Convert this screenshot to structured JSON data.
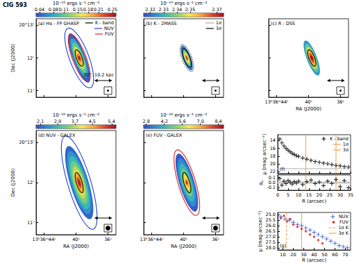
{
  "title": "CIG 593",
  "chart_data": [
    {
      "type": "image",
      "title": "(a) Hα - FP GHASP",
      "xlim": [
        45,
        35
      ],
      "xticks": [
        {
          "value": 44,
          "label": "13ʰ36ᵐ44ˢ"
        },
        {
          "value": 40,
          "label": "40ˢ"
        },
        {
          "value": 36,
          "label": "36ˢ"
        }
      ],
      "ylim": [
        10.8,
        13.2
      ],
      "yticks": [
        {
          "value": 13,
          "label": "20°13'"
        },
        {
          "value": 12,
          "label": "12'"
        },
        {
          "value": 11,
          "label": "11'"
        }
      ],
      "ylabel": "Dec (J2000)",
      "tick_labels": "y",
      "colorbar": {
        "label": "10⁻¹⁵ ergs s⁻¹ cm⁻²",
        "range": [
          0.03,
          0.26
        ],
        "ticks": [
          0.04,
          0.08,
          0.11,
          0.15,
          0.18,
          0.21,
          0.25
        ]
      },
      "center": [
        39.6,
        12.0
      ],
      "pa": 20,
      "isophotes": [
        {
          "level": 0.04,
          "a": 48,
          "b": 11
        },
        {
          "level": 0.08,
          "a": 38,
          "b": 9
        },
        {
          "level": 0.11,
          "a": 30,
          "b": 7.5
        },
        {
          "level": 0.15,
          "a": 22,
          "b": 6
        },
        {
          "level": 0.18,
          "a": 14,
          "b": 4.5
        },
        {
          "level": 0.21,
          "a": 8,
          "b": 3
        },
        {
          "level": 0.25,
          "a": 4,
          "b": 2
        }
      ],
      "contours": [
        {
          "name": "K - band",
          "color": "#000000",
          "line_style": "solid",
          "a": 16,
          "b": 5
        },
        {
          "name": "NUV",
          "color": "#1f3fd6",
          "line_style": "solid",
          "a": 58,
          "b": 17
        },
        {
          "name": "FUV",
          "color": "#e0201b",
          "line_style": "solid",
          "a": 46,
          "b": 12
        }
      ],
      "legend": "upper right",
      "scale_bar": 30,
      "scale_label": "30'': 10.2 kpc"
    },
    {
      "type": "image",
      "title": "(b) K - 2MASS",
      "xlim": [
        45,
        35
      ],
      "xticks": [
        {
          "value": 44,
          "label": "13ʰ36ᵐ44ˢ"
        },
        {
          "value": 40,
          "label": "40ˢ"
        },
        {
          "value": 36,
          "label": "36ˢ"
        }
      ],
      "ylim": [
        10.8,
        13.2
      ],
      "yticks": [
        {
          "value": 13,
          "label": "20°13'"
        },
        {
          "value": 12,
          "label": "12'"
        },
        {
          "value": 11,
          "label": "11'"
        }
      ],
      "tick_labels": false,
      "colorbar": {
        "label": "10⁻¹⁴ ergs s⁻¹ cm⁻²",
        "range": [
          2.315,
          2.375
        ],
        "ticks": [
          2.32,
          2.33,
          2.34,
          2.35,
          2.37
        ]
      },
      "center": [
        39.6,
        12.0
      ],
      "pa": 20,
      "isophotes": [
        {
          "level": 2.32,
          "a": 24,
          "b": 7
        },
        {
          "level": 2.33,
          "a": 19,
          "b": 5.5
        },
        {
          "level": 2.34,
          "a": 14,
          "b": 4
        },
        {
          "level": 2.35,
          "a": 10,
          "b": 3
        },
        {
          "level": 2.36,
          "a": 6,
          "b": 2
        },
        {
          "level": 2.37,
          "a": 3,
          "b": 1.2
        }
      ],
      "contours": [
        {
          "name": "1σ",
          "color": "#000000",
          "line_style": "dotted",
          "a": 26,
          "b": 8.5
        },
        {
          "name": "3σ",
          "color": "#000000",
          "line_style": "solid",
          "a": 18,
          "b": 5.5
        }
      ],
      "legend": "upper right",
      "scale_bar": 30
    },
    {
      "type": "image",
      "title": "(c) R - DSS",
      "xlim": [
        45,
        35
      ],
      "xticks": [
        {
          "value": 44,
          "label": "13ʰ36ᵐ44ˢ"
        },
        {
          "value": 40,
          "label": "40ˢ"
        },
        {
          "value": 36,
          "label": "36ˢ"
        }
      ],
      "ylim": [
        10.8,
        13.2
      ],
      "yticks": [
        {
          "value": 13,
          "label": "20°13'"
        },
        {
          "value": 12,
          "label": "12'"
        },
        {
          "value": 11,
          "label": "11'"
        }
      ],
      "xlabel": "RA (J2000)",
      "tick_labels": "x",
      "color_range": [
        0,
        6
      ],
      "center": [
        39.6,
        12.0
      ],
      "pa": 20,
      "isophotes": [
        {
          "level": 1,
          "a": 34,
          "b": 9
        },
        {
          "level": 2,
          "a": 28,
          "b": 7.5
        },
        {
          "level": 3,
          "a": 22,
          "b": 6
        },
        {
          "level": 4,
          "a": 16,
          "b": 4.5
        },
        {
          "level": 5,
          "a": 10,
          "b": 3
        },
        {
          "level": 6,
          "a": 5,
          "b": 2
        }
      ],
      "contours": [
        {
          "name": "K - band",
          "color": "#000000",
          "line_style": "solid",
          "a": 16,
          "b": 5
        }
      ],
      "scale_bar": 30
    },
    {
      "type": "image",
      "title": "(d) NUV - GALEX",
      "xlim": [
        45,
        35
      ],
      "xticks": [
        {
          "value": 44,
          "label": "13ʰ36ᵐ44ˢ"
        },
        {
          "value": 40,
          "label": "40ˢ"
        },
        {
          "value": 36,
          "label": "36ˢ"
        }
      ],
      "ylim": [
        10.7,
        13.3
      ],
      "yticks": [
        {
          "value": 13,
          "label": "20°13'"
        },
        {
          "value": 12,
          "label": "12'"
        },
        {
          "value": 11,
          "label": "11'"
        }
      ],
      "xlabel": "RA (J2000)",
      "ylabel": "Dec (J2000)",
      "colorbar": {
        "label": "10⁻¹⁸ ergs s⁻¹ cm⁻²",
        "range": [
          1.9,
          5.6
        ],
        "ticks": [
          2.1,
          2.9,
          3.7,
          4.5,
          5.4
        ]
      },
      "center": [
        39.6,
        12.0
      ],
      "pa": 20,
      "isophotes": [
        {
          "level": 2.1,
          "a": 58,
          "b": 16
        },
        {
          "level": 2.5,
          "a": 50,
          "b": 14
        },
        {
          "level": 2.9,
          "a": 42,
          "b": 12
        },
        {
          "level": 3.3,
          "a": 34,
          "b": 10
        },
        {
          "level": 3.7,
          "a": 26,
          "b": 8
        },
        {
          "level": 4.1,
          "a": 20,
          "b": 6
        },
        {
          "level": 4.5,
          "a": 14,
          "b": 4.5
        },
        {
          "level": 5.0,
          "a": 9,
          "b": 3
        },
        {
          "level": 5.4,
          "a": 5,
          "b": 2
        }
      ],
      "contours": [
        {
          "name": "NUV",
          "color": "#1f3fd6",
          "line_style": "solid",
          "a": 74,
          "b": 20
        },
        {
          "name": "K - band",
          "color": "#000000",
          "line_style": "solid",
          "a": 16,
          "b": 5
        }
      ],
      "scale_bar": 30
    },
    {
      "type": "image",
      "title": "(e) FUV - GALEX",
      "xlim": [
        45,
        35
      ],
      "xticks": [
        {
          "value": 44,
          "label": "13ʰ36ᵐ44ˢ"
        },
        {
          "value": 40,
          "label": "40ˢ"
        },
        {
          "value": 36,
          "label": "36ˢ"
        }
      ],
      "ylim": [
        10.7,
        13.3
      ],
      "yticks": [
        {
          "value": 13,
          "label": "20°13'"
        },
        {
          "value": 12,
          "label": "12'"
        },
        {
          "value": 11,
          "label": "11'"
        }
      ],
      "xlabel": "RA (J2000)",
      "tick_labels": "x",
      "colorbar": {
        "label": "10⁻¹⁸ ergs s⁻¹ cm⁻²",
        "range": [
          2.6,
          8.8
        ],
        "ticks": [
          2.8,
          4.2,
          5.6,
          {
            "value": 7,
            "label": "7.0"
          },
          8.4
        ]
      },
      "center": [
        39.6,
        12.0
      ],
      "pa": 20,
      "isophotes": [
        {
          "level": 2.8,
          "a": 46,
          "b": 13
        },
        {
          "level": 3.5,
          "a": 38,
          "b": 11
        },
        {
          "level": 4.2,
          "a": 30,
          "b": 9
        },
        {
          "level": 4.9,
          "a": 22,
          "b": 7
        },
        {
          "level": 5.6,
          "a": 16,
          "b": 5
        },
        {
          "level": 6.3,
          "a": 11,
          "b": 4
        },
        {
          "level": 7.0,
          "a": 7,
          "b": 3
        },
        {
          "level": 8.4,
          "a": 3,
          "b": 1.5
        }
      ],
      "contours": [
        {
          "name": "FUV",
          "color": "#e0201b",
          "line_style": "solid",
          "a": 52,
          "b": 15
        },
        {
          "name": "K - band",
          "color": "#000000",
          "line_style": "solid",
          "a": 16,
          "b": 5
        }
      ],
      "scale_bar": 30
    },
    {
      "type": "scatter",
      "title": "(f)",
      "x": [
        1,
        2,
        3,
        4,
        5,
        6,
        7,
        8,
        9,
        10,
        12,
        14,
        16,
        18,
        20,
        22,
        24,
        26,
        28,
        30,
        32,
        34
      ],
      "series": [
        {
          "name": "K - band",
          "color": "#000000",
          "marker": "plus",
          "values": [
            13.6,
            14.6,
            15.4,
            16.0,
            16.5,
            16.9,
            17.3,
            17.6,
            17.9,
            18.1,
            18.5,
            18.8,
            19.1,
            19.4,
            19.6,
            19.8,
            20.0,
            20.2,
            20.4,
            20.5,
            20.7,
            20.8
          ]
        }
      ],
      "vlines": [
        {
          "name": "1σ",
          "x": 13.5,
          "color": "#f5a142",
          "line_style": "solid"
        },
        {
          "name": "3σ",
          "x": 28,
          "color": "#f5a142",
          "line_style": "solid"
        }
      ],
      "bands": [
        [
          21.1,
          21.4
        ]
      ],
      "xlim": [
        0,
        35
      ],
      "xticks": [
        0,
        5,
        10,
        15,
        20,
        25,
        30,
        35
      ],
      "ylim": [
        22.5,
        12.5
      ],
      "yticks": [
        14,
        16,
        18,
        20,
        22
      ],
      "ylabel": "μ (mag arcsec⁻²)",
      "tick_labels": "y",
      "legend": "upper right"
    },
    {
      "type": "scatter",
      "x": [
        1,
        2,
        3,
        4,
        5,
        6,
        7,
        8,
        9,
        10,
        12,
        14,
        16,
        18,
        20,
        22,
        24,
        26,
        28,
        30,
        32,
        34
      ],
      "series": [
        {
          "color": "#000000",
          "marker": "plus",
          "values": [
            0.08,
            -0.05,
            0.03,
            -0.02,
            0.04,
            0.01,
            -0.03,
            0.02,
            -0.01,
            0.03,
            -0.04,
            0.02,
            0.05,
            -0.02,
            0.01,
            -0.06,
            0.03,
            -0.02,
            0.06,
            -0.08,
            0.04,
            -0.1
          ]
        }
      ],
      "vlines": [
        {
          "x": 13.5,
          "color": "#f5a142",
          "line_style": "solid"
        },
        {
          "x": 28,
          "color": "#f5a142",
          "line_style": "solid"
        }
      ],
      "bands": [
        [
          -0.02,
          0.02
        ]
      ],
      "xlim": [
        0,
        35
      ],
      "xticks": [
        0,
        5,
        10,
        15,
        20,
        25,
        30,
        35
      ],
      "xlabel": "R (arcsec)",
      "ylim": [
        -0.15,
        0.15
      ],
      "yticks": [
        0.1,
        {
          "value": 0,
          "label": "0.0"
        },
        -0.1
      ],
      "ylabel": "Rₖ"
    },
    {
      "type": "scatter",
      "title": "(g)",
      "series": [
        {
          "name": "NUV",
          "color": "#3a62d8",
          "marker": "plus",
          "x": [
            8,
            12,
            16,
            20,
            24,
            28,
            32,
            36,
            40,
            44,
            48,
            52,
            56,
            60,
            64,
            68,
            72
          ],
          "values": [
            25.2,
            25.4,
            25.5,
            25.7,
            25.9,
            26.0,
            26.2,
            26.4,
            26.6,
            26.8,
            27.0,
            27.2,
            27.4,
            27.6,
            27.8,
            27.9,
            28.0
          ]
        },
        {
          "name": "FUV",
          "color": "#e0201b",
          "marker": "circle",
          "x": [
            8,
            11,
            14,
            17,
            20,
            24,
            28,
            32,
            36,
            40,
            44,
            48
          ],
          "values": [
            25.3,
            25.1,
            25.6,
            25.4,
            25.9,
            26.1,
            26.3,
            26.5,
            26.8,
            27.0,
            27.3,
            27.6
          ]
        }
      ],
      "vlines": [
        {
          "name": "1σ K",
          "x": 13.5,
          "color": "#f5a142",
          "line_style": "dashed"
        },
        {
          "name": "3σ K",
          "x": 28,
          "color": "#f5a142",
          "line_style": "solid"
        }
      ],
      "xlim": [
        5,
        75
      ],
      "xticks": [
        10,
        20,
        30,
        40,
        50,
        60,
        70
      ],
      "xlabel": "R (arcsec)",
      "ylim": [
        28.2,
        24.8
      ],
      "yticks": [
        {
          "value": 25,
          "label": "25.0"
        },
        25.5,
        {
          "value": 26,
          "label": "26.0"
        },
        26.5,
        {
          "value": 27,
          "label": "27.0"
        },
        27.5,
        {
          "value": 28,
          "label": "28.0"
        }
      ],
      "ylabel": "μ (mag arcsec⁻²)",
      "legend": "upper right"
    }
  ]
}
